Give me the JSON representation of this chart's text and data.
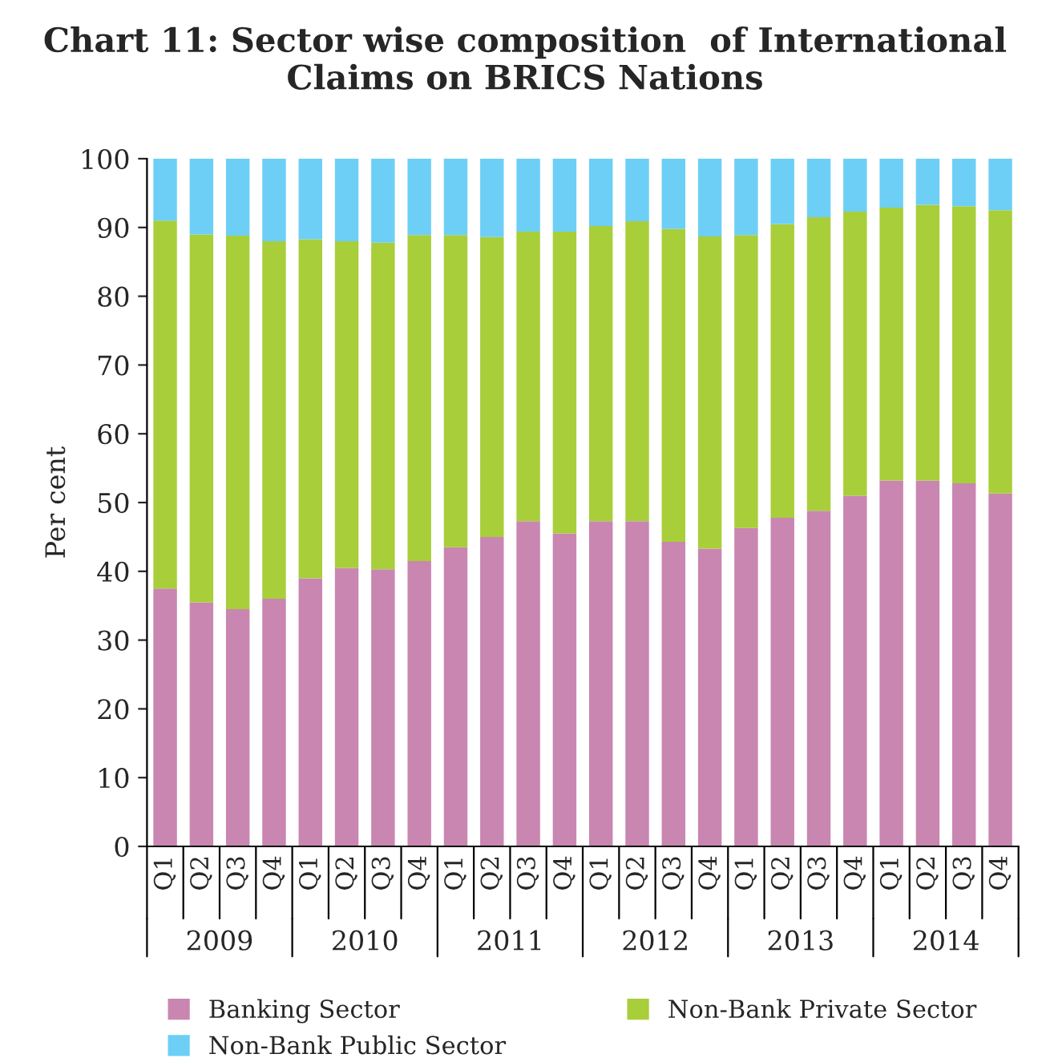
{
  "chart_data": {
    "type": "bar",
    "title": "Chart 11: Sector wise composition  of International Claims on BRICS Nations",
    "ylabel": "Per cent",
    "categories": [
      "Q1",
      "Q2",
      "Q3",
      "Q4",
      "Q1",
      "Q2",
      "Q3",
      "Q4",
      "Q1",
      "Q2",
      "Q3",
      "Q4",
      "Q1",
      "Q2",
      "Q3",
      "Q4",
      "Q1",
      "Q2",
      "Q3",
      "Q4",
      "Q1",
      "Q2",
      "Q3",
      "Q4"
    ],
    "annotations": [
      "2009",
      "2010",
      "2011",
      "2012",
      "2013",
      "2014"
    ],
    "stacked": true,
    "series": [
      {
        "name": "Banking Sector",
        "color": "#c986b1",
        "values": [
          37.5,
          35.5,
          34.5,
          36,
          39,
          40.5,
          40.3,
          41.5,
          43.5,
          45,
          47.3,
          45.5,
          47.3,
          47.3,
          44.3,
          43.3,
          46.3,
          47.8,
          48.8,
          51,
          53.2,
          53.2,
          52.8,
          51.3
        ]
      },
      {
        "name": "Non-Bank Private Sector",
        "color": "#a8ce3a",
        "values": [
          53.5,
          53.5,
          54.3,
          52,
          49.3,
          47.5,
          47.5,
          47.4,
          45.4,
          43.6,
          42.1,
          43.9,
          42.9,
          43.6,
          45.5,
          45.4,
          42.6,
          42.7,
          42.7,
          41.3,
          39.7,
          40.1,
          40.3,
          41.2
        ]
      },
      {
        "name": "Non-Bank Public Sector",
        "color": "#6dcff6",
        "values": [
          9,
          11,
          11.2,
          12,
          11.7,
          12,
          12.2,
          11.1,
          11.1,
          11.4,
          10.6,
          10.6,
          9.8,
          9.1,
          10.2,
          11.3,
          11.1,
          9.5,
          8.5,
          7.7,
          7.1,
          6.7,
          6.9,
          7.5
        ]
      }
    ],
    "ylim": [
      0,
      100
    ],
    "yticks": [
      0,
      10,
      20,
      30,
      40,
      50,
      60,
      70,
      80,
      90,
      100
    ],
    "grid": false,
    "legend": "bottom"
  }
}
